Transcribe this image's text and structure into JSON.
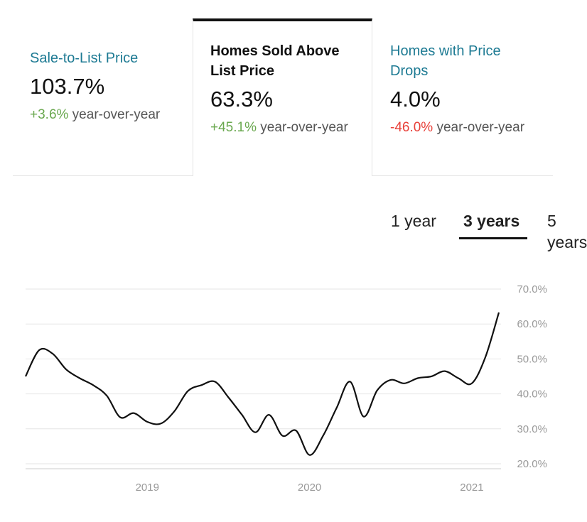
{
  "cards": [
    {
      "title": "Sale-to-List Price",
      "value": "103.7%",
      "change": "+3.6%",
      "change_suffix": " year-over-year",
      "change_color": "#6aa84f",
      "selected": false
    },
    {
      "title": "Homes Sold Above List Price",
      "value": "63.3%",
      "change": "+45.1%",
      "change_suffix": " year-over-year",
      "change_color": "#6aa84f",
      "selected": true
    },
    {
      "title": "Homes with Price Drops",
      "value": "4.0%",
      "change": "-46.0%",
      "change_suffix": " year-over-year",
      "change_color": "#e8413a",
      "selected": false
    }
  ],
  "ranges": {
    "options": [
      "1 year",
      "3 years",
      "5 years"
    ],
    "selected": "3 years"
  },
  "chart_data": {
    "type": "line",
    "title": "",
    "xlabel": "",
    "ylabel": "",
    "x_ticks": [
      "2019",
      "2020",
      "2021"
    ],
    "y_ticks": [
      "20.0%",
      "30.0%",
      "40.0%",
      "50.0%",
      "60.0%",
      "70.0%"
    ],
    "ylim": [
      20,
      70
    ],
    "xlim": [
      "2018-04",
      "2021-03"
    ],
    "grid": true,
    "series": [
      {
        "name": "",
        "color": "#111111",
        "points": [
          [
            "2018-04",
            45.0
          ],
          [
            "2018-05",
            52.5
          ],
          [
            "2018-06",
            51.5
          ],
          [
            "2018-07",
            47.0
          ],
          [
            "2018-08",
            44.5
          ],
          [
            "2018-09",
            42.5
          ],
          [
            "2018-10",
            39.5
          ],
          [
            "2018-11",
            33.3
          ],
          [
            "2018-12",
            34.5
          ],
          [
            "2019-01",
            32.0
          ],
          [
            "2019-02",
            31.5
          ],
          [
            "2019-03",
            35.0
          ],
          [
            "2019-04",
            40.8
          ],
          [
            "2019-05",
            42.5
          ],
          [
            "2019-06",
            43.5
          ],
          [
            "2019-07",
            39.0
          ],
          [
            "2019-08",
            34.0
          ],
          [
            "2019-09",
            29.0
          ],
          [
            "2019-10",
            34.0
          ],
          [
            "2019-11",
            28.0
          ],
          [
            "2019-12",
            29.5
          ],
          [
            "2020-01",
            22.5
          ],
          [
            "2020-02",
            28.0
          ],
          [
            "2020-03",
            36.0
          ],
          [
            "2020-04",
            43.5
          ],
          [
            "2020-05",
            33.5
          ],
          [
            "2020-06",
            41.0
          ],
          [
            "2020-07",
            44.0
          ],
          [
            "2020-08",
            43.0
          ],
          [
            "2020-09",
            44.5
          ],
          [
            "2020-10",
            45.0
          ],
          [
            "2020-11",
            46.5
          ],
          [
            "2020-12",
            44.5
          ],
          [
            "2021-01",
            43.0
          ],
          [
            "2021-02",
            50.5
          ],
          [
            "2021-03",
            63.3
          ]
        ]
      }
    ]
  }
}
